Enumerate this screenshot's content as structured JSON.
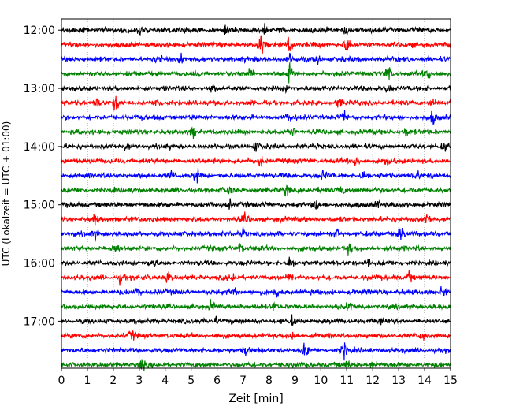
{
  "chart_data": {
    "type": "line",
    "title": "",
    "xlabel": "Zeit  [min]",
    "ylabel": "UTC (Lokalzeit = UTC + 01:00)",
    "xlim": [
      0,
      15
    ],
    "x_ticks": [
      "0",
      "1",
      "2",
      "3",
      "4",
      "5",
      "6",
      "7",
      "8",
      "9",
      "10",
      "11",
      "12",
      "13",
      "14",
      "15"
    ],
    "y_ticks": [
      "12:00",
      "13:00",
      "14:00",
      "15:00",
      "16:00",
      "17:00"
    ],
    "row_start": "12:00",
    "row_end": "17:45",
    "row_interval_min": 15,
    "row_colors": [
      "#000000",
      "#ff0000",
      "#0000ff",
      "#008000"
    ],
    "grid": "vertical-dotted",
    "legend": "none",
    "rows": [
      {
        "time": "12:00",
        "color": "#000000",
        "events": [
          [
            3.0,
            1.3
          ],
          [
            6.3,
            1.2
          ],
          [
            7.8,
            1.1
          ],
          [
            11.0,
            1.2
          ]
        ]
      },
      {
        "time": "12:15",
        "color": "#ff0000",
        "events": [
          [
            7.7,
            3.0
          ],
          [
            8.8,
            2.6
          ],
          [
            11.0,
            2.2
          ]
        ]
      },
      {
        "time": "12:30",
        "color": "#0000ff",
        "events": [
          [
            3.8,
            1.2
          ],
          [
            4.6,
            1.2
          ],
          [
            8.8,
            1.4
          ],
          [
            9.9,
            1.3
          ]
        ]
      },
      {
        "time": "12:45",
        "color": "#008000",
        "events": [
          [
            7.3,
            1.2
          ],
          [
            8.8,
            2.0
          ],
          [
            12.6,
            2.2
          ],
          [
            14.1,
            1.4
          ]
        ]
      },
      {
        "time": "13:00",
        "color": "#000000",
        "events": [
          [
            5.8,
            1.2
          ],
          [
            8.7,
            1.2
          ],
          [
            12.6,
            1.2
          ],
          [
            15.0,
            1.3
          ]
        ]
      },
      {
        "time": "13:15",
        "color": "#ff0000",
        "events": [
          [
            1.4,
            1.2
          ],
          [
            2.1,
            2.0
          ],
          [
            3.7,
            1.2
          ],
          [
            10.7,
            1.2
          ],
          [
            14.3,
            1.3
          ]
        ]
      },
      {
        "time": "13:30",
        "color": "#0000ff",
        "events": [
          [
            8.8,
            1.3
          ],
          [
            10.9,
            1.2
          ],
          [
            14.3,
            2.0
          ]
        ]
      },
      {
        "time": "13:45",
        "color": "#008000",
        "events": [
          [
            5.1,
            1.3
          ],
          [
            8.9,
            1.3
          ],
          [
            13.3,
            1.2
          ]
        ]
      },
      {
        "time": "14:00",
        "color": "#000000",
        "events": [
          [
            2.5,
            1.1
          ],
          [
            7.5,
            1.2
          ],
          [
            14.8,
            1.2
          ]
        ]
      },
      {
        "time": "14:15",
        "color": "#ff0000",
        "events": [
          [
            7.7,
            1.3
          ],
          [
            11.4,
            1.5
          ],
          [
            12.5,
            1.1
          ]
        ]
      },
      {
        "time": "14:30",
        "color": "#0000ff",
        "events": [
          [
            4.2,
            1.3
          ],
          [
            5.2,
            1.8
          ],
          [
            10.1,
            1.3
          ],
          [
            11.6,
            1.3
          ],
          [
            13.7,
            1.2
          ]
        ]
      },
      {
        "time": "14:45",
        "color": "#008000",
        "events": [
          [
            6.5,
            1.1
          ],
          [
            8.7,
            1.8
          ],
          [
            10.8,
            1.5
          ]
        ]
      },
      {
        "time": "15:00",
        "color": "#000000",
        "events": [
          [
            6.5,
            1.2
          ],
          [
            9.8,
            1.4
          ],
          [
            12.2,
            1.2
          ]
        ]
      },
      {
        "time": "15:15",
        "color": "#ff0000",
        "events": [
          [
            1.3,
            1.2
          ],
          [
            7.1,
            1.1
          ],
          [
            14.1,
            1.3
          ]
        ]
      },
      {
        "time": "15:30",
        "color": "#0000ff",
        "events": [
          [
            1.3,
            1.2
          ],
          [
            7.0,
            1.2
          ],
          [
            10.6,
            1.3
          ],
          [
            13.1,
            1.8
          ]
        ]
      },
      {
        "time": "15:45",
        "color": "#008000",
        "events": [
          [
            2.1,
            1.7
          ],
          [
            6.9,
            1.2
          ],
          [
            11.1,
            1.2
          ]
        ]
      },
      {
        "time": "16:00",
        "color": "#000000",
        "events": [
          [
            3.5,
            1.3
          ],
          [
            8.8,
            1.5
          ],
          [
            11.8,
            1.3
          ]
        ]
      },
      {
        "time": "16:15",
        "color": "#ff0000",
        "events": [
          [
            2.3,
            1.5
          ],
          [
            4.1,
            1.6
          ],
          [
            6.6,
            1.3
          ],
          [
            8.8,
            1.5
          ],
          [
            13.4,
            1.2
          ]
        ]
      },
      {
        "time": "16:30",
        "color": "#0000ff",
        "events": [
          [
            3.0,
            1.2
          ],
          [
            6.6,
            1.3
          ],
          [
            8.3,
            1.3
          ],
          [
            14.7,
            1.2
          ]
        ]
      },
      {
        "time": "16:45",
        "color": "#008000",
        "events": [
          [
            5.8,
            1.2
          ],
          [
            8.2,
            1.2
          ],
          [
            11.1,
            1.2
          ]
        ]
      },
      {
        "time": "17:00",
        "color": "#000000",
        "events": [
          [
            5.9,
            1.1
          ],
          [
            8.9,
            1.1
          ],
          [
            12.3,
            1.1
          ]
        ]
      },
      {
        "time": "17:15",
        "color": "#ff0000",
        "events": [
          [
            2.7,
            1.2
          ],
          [
            8.9,
            1.2
          ],
          [
            13.9,
            1.1
          ]
        ]
      },
      {
        "time": "17:30",
        "color": "#0000ff",
        "events": [
          [
            7.1,
            1.3
          ],
          [
            9.4,
            1.8
          ],
          [
            10.9,
            1.9
          ]
        ]
      },
      {
        "time": "17:45",
        "color": "#008000",
        "events": [
          [
            3.1,
            1.2
          ],
          [
            11.0,
            1.5
          ],
          [
            12.0,
            1.3
          ]
        ]
      }
    ]
  }
}
